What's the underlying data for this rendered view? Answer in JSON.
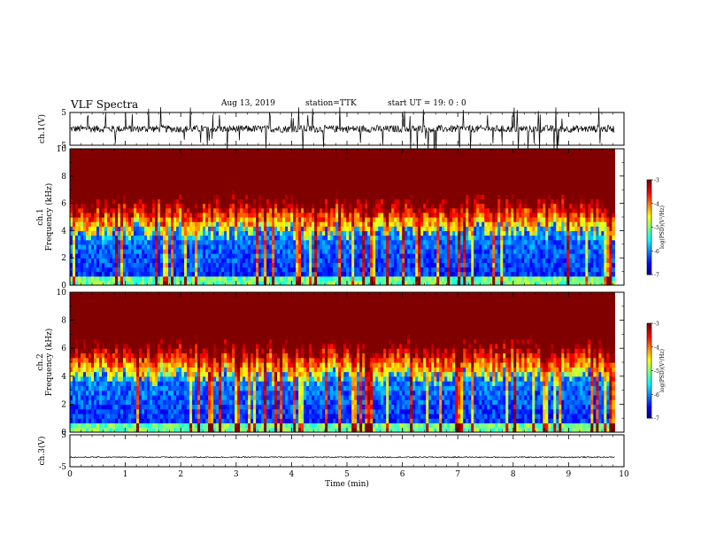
{
  "header": {
    "title": "VLF Spectra",
    "date": "Aug 13, 2019",
    "station": "station=TTK",
    "start": "start UT =  19: 0 : 0"
  },
  "colors": {
    "spectrogram_low": "#000080",
    "spectrogram_high": "#ff1010",
    "trace": "#000000"
  },
  "chart_data": [
    {
      "type": "line",
      "panel": "waveform-ch1",
      "ylabel": "ch.1(V)",
      "ylim": [
        -5,
        5
      ],
      "yticks": [
        "5",
        "-5"
      ],
      "xlim": [
        0,
        10
      ],
      "baseline": 0
    },
    {
      "type": "heatmap",
      "panel": "spectrogram-ch1",
      "ylabel": "ch.1\nFrequency (kHz)",
      "ylim": [
        0,
        10
      ],
      "yticks": [
        "0",
        "2",
        "4",
        "6",
        "8",
        "10"
      ],
      "xlim": [
        0,
        10
      ],
      "data_end_min": 9.83,
      "colorbar": {
        "label": "log(PSD)(V²/Hz)",
        "range": [
          -7,
          -3
        ],
        "ticks": [
          "-3",
          "-4",
          "-5",
          "-6",
          "-7"
        ]
      }
    },
    {
      "type": "heatmap",
      "panel": "spectrogram-ch2",
      "ylabel": "ch.2\nFrequency (kHz)",
      "ylim": [
        0,
        10
      ],
      "yticks": [
        "0",
        "2",
        "4",
        "6",
        "8",
        "10"
      ],
      "xlim": [
        0,
        10
      ],
      "data_end_min": 9.83,
      "colorbar": {
        "label": "log(PSD)(V²/Hz)",
        "range": [
          -7,
          -3
        ],
        "ticks": [
          "-3",
          "-4",
          "-5",
          "-6",
          "-7"
        ]
      }
    },
    {
      "type": "line",
      "panel": "waveform-ch3",
      "ylabel": "ch.3(V)",
      "ylim": [
        -5,
        5
      ],
      "yticks": [
        "5",
        "-5"
      ],
      "xlim": [
        0,
        10
      ],
      "baseline": -2,
      "xlabel": "Time (min)",
      "xticks": [
        "0",
        "1",
        "2",
        "3",
        "4",
        "5",
        "6",
        "7",
        "8",
        "9",
        "10"
      ]
    }
  ]
}
